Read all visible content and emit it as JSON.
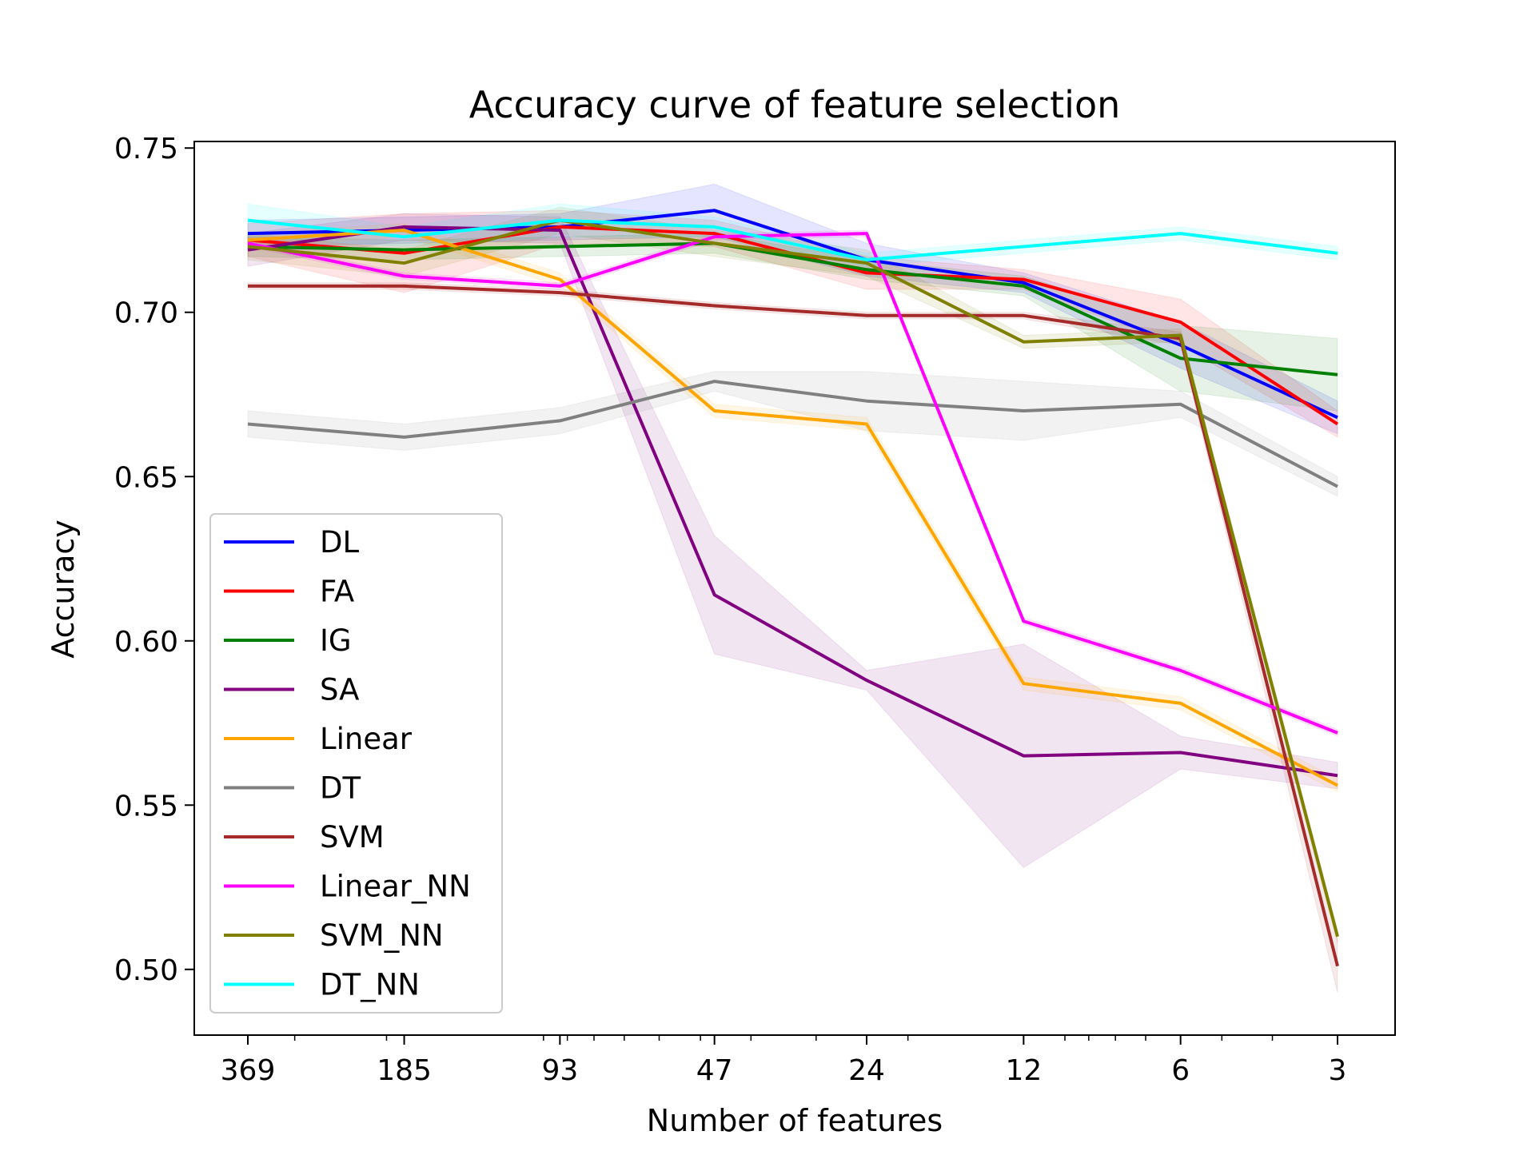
{
  "chart_data": {
    "type": "line",
    "title": "Accuracy curve of feature selection",
    "xlabel": "Number of features",
    "ylabel": "Accuracy",
    "x_scale": "log, reversed",
    "categories": [
      "369",
      "185",
      "93",
      "47",
      "24",
      "12",
      "6",
      "3"
    ],
    "x": [
      369,
      185,
      93,
      47,
      24,
      12,
      6,
      3
    ],
    "ylim": [
      0.48,
      0.752
    ],
    "yticks": [
      "0.50",
      "0.55",
      "0.60",
      "0.65",
      "0.70",
      "0.75"
    ],
    "grid": false,
    "legend_position": "lower-left",
    "series": [
      {
        "name": "DL",
        "color": "#0000ff",
        "values": [
          0.724,
          0.725,
          0.726,
          0.731,
          0.716,
          0.709,
          0.69,
          0.668
        ],
        "band": [
          0.004,
          0.004,
          0.004,
          0.008,
          0.005,
          0.003,
          0.007,
          0.005
        ]
      },
      {
        "name": "FA",
        "color": "#ff0000",
        "values": [
          0.722,
          0.718,
          0.726,
          0.724,
          0.712,
          0.71,
          0.697,
          0.666
        ],
        "band": [
          0.005,
          0.012,
          0.005,
          0.004,
          0.005,
          0.003,
          0.007,
          0.004
        ]
      },
      {
        "name": "IG",
        "color": "#008000",
        "values": [
          0.72,
          0.719,
          0.72,
          0.721,
          0.713,
          0.708,
          0.686,
          0.681
        ],
        "band": [
          0.003,
          0.003,
          0.003,
          0.003,
          0.003,
          0.003,
          0.01,
          0.011
        ]
      },
      {
        "name": "SA",
        "color": "#800080",
        "values": [
          0.719,
          0.726,
          0.725,
          0.614,
          0.588,
          0.565,
          0.566,
          0.559
        ],
        "band": [
          0.005,
          0.004,
          0.004,
          0.018,
          0.003,
          0.034,
          0.005,
          0.004
        ]
      },
      {
        "name": "Linear",
        "color": "#ffa500",
        "values": [
          0.722,
          0.725,
          0.71,
          0.67,
          0.666,
          0.587,
          0.581,
          0.556
        ],
        "band": [
          0.002,
          0.002,
          0.002,
          0.002,
          0.002,
          0.002,
          0.002,
          0.002
        ]
      },
      {
        "name": "DT",
        "color": "#808080",
        "values": [
          0.666,
          0.662,
          0.667,
          0.679,
          0.673,
          0.67,
          0.672,
          0.647
        ],
        "band": [
          0.004,
          0.004,
          0.004,
          0.003,
          0.009,
          0.009,
          0.004,
          0.003
        ]
      },
      {
        "name": "SVM",
        "color": "#a52a2a",
        "values": [
          0.708,
          0.708,
          0.706,
          0.702,
          0.699,
          0.699,
          0.692,
          0.501
        ],
        "band": [
          0.001,
          0.001,
          0.001,
          0.001,
          0.001,
          0.001,
          0.002,
          0.008
        ]
      },
      {
        "name": "Linear_NN",
        "color": "#ff00ff",
        "values": [
          0.721,
          0.711,
          0.708,
          0.723,
          0.724,
          0.606,
          0.591,
          0.572
        ],
        "band": [
          0.001,
          0.001,
          0.001,
          0.001,
          0.001,
          0.001,
          0.001,
          0.001
        ]
      },
      {
        "name": "SVM_NN",
        "color": "#808000",
        "values": [
          0.72,
          0.715,
          0.728,
          0.721,
          0.715,
          0.691,
          0.693,
          0.51
        ],
        "band": [
          0.004,
          0.004,
          0.004,
          0.004,
          0.004,
          0.002,
          0.002,
          0.002
        ]
      },
      {
        "name": "DT_NN",
        "color": "#00ffff",
        "values": [
          0.728,
          0.723,
          0.728,
          0.726,
          0.716,
          0.72,
          0.724,
          0.718
        ],
        "band": [
          0.005,
          0.003,
          0.005,
          0.003,
          0.002,
          0.002,
          0.002,
          0.002
        ]
      }
    ]
  }
}
